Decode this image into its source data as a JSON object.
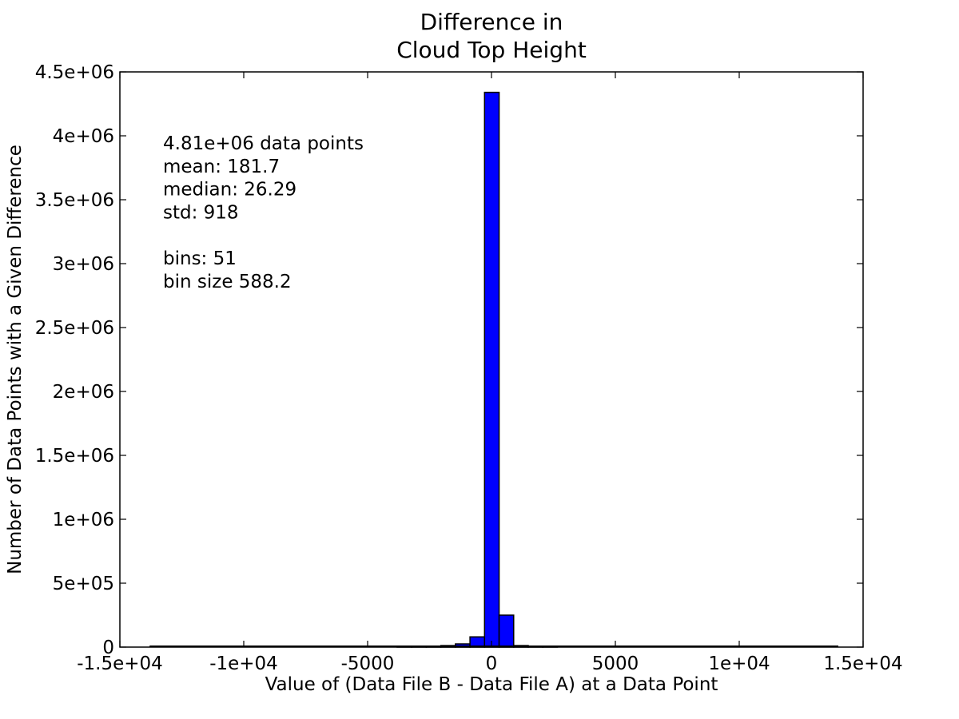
{
  "chart_data": {
    "type": "bar",
    "title": [
      "Difference in",
      "Cloud Top Height"
    ],
    "xlabel": "Value of (Data File B - Data File A) at a Data Point",
    "ylabel": "Number of Data Points with a Given Difference",
    "xlim": [
      -15000,
      15000
    ],
    "ylim": [
      0,
      4500000
    ],
    "xticks": [
      {
        "value": -15000,
        "label": "-1.5e+04"
      },
      {
        "value": -10000,
        "label": "-1e+04"
      },
      {
        "value": -5000,
        "label": "-5000"
      },
      {
        "value": 0,
        "label": "0"
      },
      {
        "value": 5000,
        "label": "5000"
      },
      {
        "value": 10000,
        "label": "1e+04"
      },
      {
        "value": 15000,
        "label": "1.5e+04"
      }
    ],
    "yticks": [
      {
        "value": 0,
        "label": "0"
      },
      {
        "value": 500000,
        "label": "5e+05"
      },
      {
        "value": 1000000,
        "label": "1e+06"
      },
      {
        "value": 1500000,
        "label": "1.5e+06"
      },
      {
        "value": 2000000,
        "label": "2e+06"
      },
      {
        "value": 2500000,
        "label": "2.5e+06"
      },
      {
        "value": 3000000,
        "label": "3e+06"
      },
      {
        "value": 3500000,
        "label": "3.5e+06"
      },
      {
        "value": 4000000,
        "label": "4e+06"
      },
      {
        "value": 4500000,
        "label": "4.5e+06"
      }
    ],
    "bins": [
      {
        "left": -3808,
        "right": -3220,
        "value": 3000
      },
      {
        "left": -3220,
        "right": -2632,
        "value": 4000
      },
      {
        "left": -2632,
        "right": -2044,
        "value": 6000
      },
      {
        "left": -2044,
        "right": -1456,
        "value": 12000
      },
      {
        "left": -1456,
        "right": -868,
        "value": 25000
      },
      {
        "left": -868,
        "right": -280,
        "value": 80000
      },
      {
        "left": -280,
        "right": 308,
        "value": 4340000
      },
      {
        "left": 308,
        "right": 896,
        "value": 250000
      },
      {
        "left": 896,
        "right": 1484,
        "value": 12000
      },
      {
        "left": 1484,
        "right": 2072,
        "value": 5000
      },
      {
        "left": 2072,
        "right": 2660,
        "value": 3000
      }
    ],
    "baseline_span": [
      -13800,
      14000
    ],
    "bar_color": "#0000ff",
    "grid": false
  },
  "stats": {
    "lines": [
      "4.81e+06 data points",
      "mean: 181.7",
      "median: 26.29",
      "std: 918",
      "",
      "bins: 51",
      "bin size 588.2"
    ]
  }
}
